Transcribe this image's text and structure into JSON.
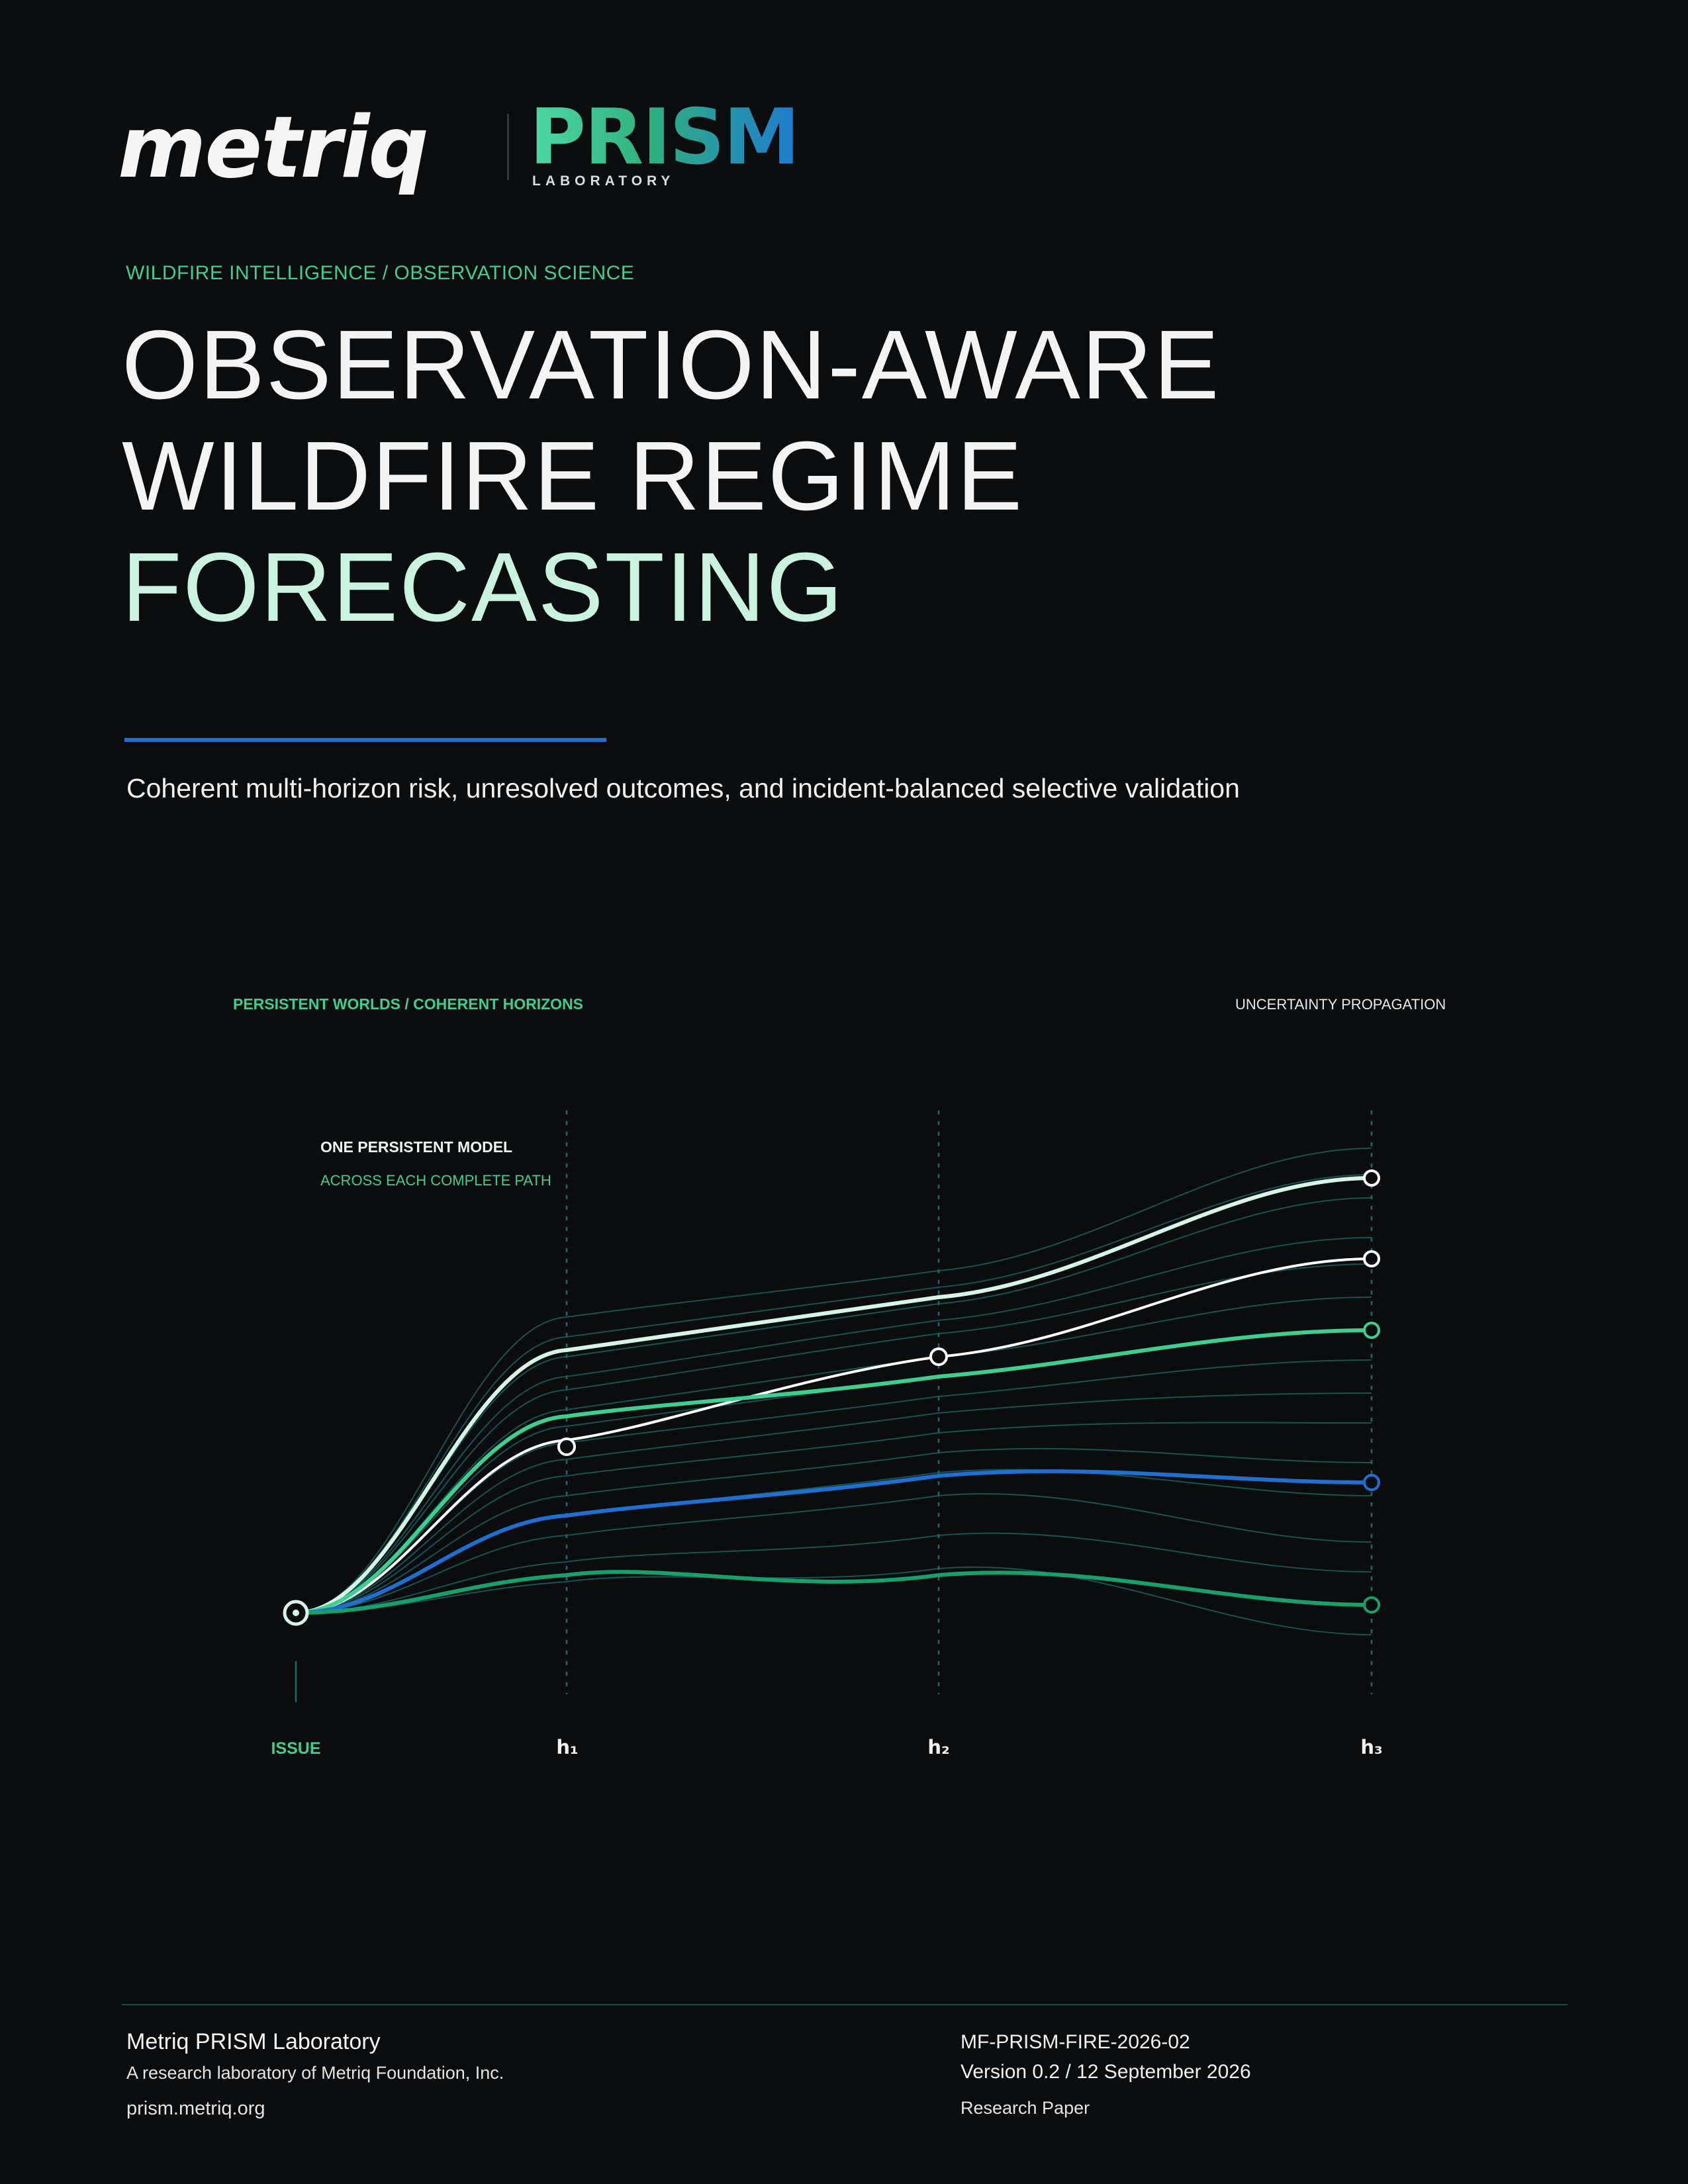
{
  "header": {
    "logo_text": "metriq",
    "prism_text": "PRISM",
    "lab_text": "LABORATORY"
  },
  "kicker": "WILDFIRE INTELLIGENCE / OBSERVATION SCIENCE",
  "title": {
    "line1": "OBSERVATION-AWARE",
    "line2": "WILDFIRE REGIME",
    "line3": "FORECASTING"
  },
  "subtitle": "Coherent multi-horizon risk, unresolved outcomes, and incident-balanced selective validation",
  "figure": {
    "label_left": "PERSISTENT WORLDS / COHERENT HORIZONS",
    "label_right": "UNCERTAINTY PROPAGATION",
    "note_1": "ONE PERSISTENT MODEL",
    "note_2": "ACROSS EACH COMPLETE PATH",
    "axis_labels": [
      "ISSUE",
      "h₁",
      "h₂",
      "h₃"
    ],
    "colors": {
      "mint": "#d6f5e6",
      "white": "#ffffff",
      "green": "#3ecf8e",
      "blue": "#1f6fd1",
      "dark_green": "#16a06a",
      "faint": "#1b6b6b"
    }
  },
  "footer": {
    "org": "Metriq PRISM Laboratory",
    "description": "A research laboratory of Metriq Foundation, Inc.",
    "url": "prism.metriq.org",
    "doc_id": "MF-PRISM-FIRE-2026-02",
    "version": "Version 0.2 / 12 September 2026",
    "doc_type": "Research Paper"
  }
}
